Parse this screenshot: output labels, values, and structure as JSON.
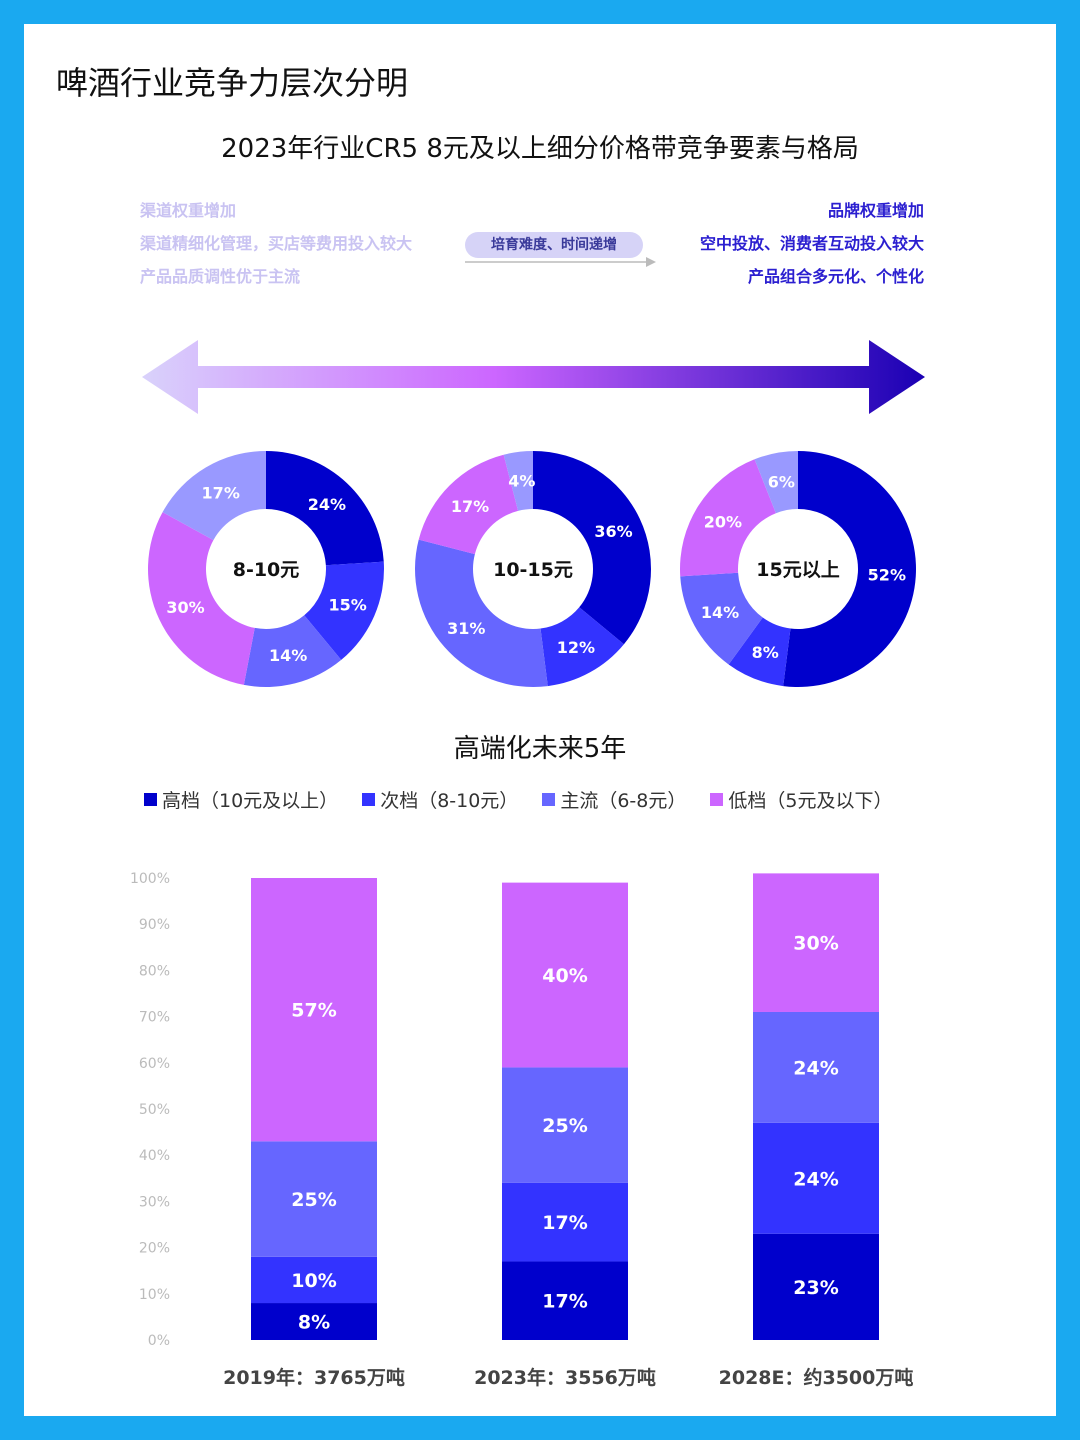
{
  "title": "啤酒行业竞争力层次分明",
  "subtitle": "2023年行业CR5 8元及以上细分价格带竞争要素与格局",
  "left_notes": [
    "渠道权重增加",
    "渠道精细化管理，买店等费用投入较大",
    "产品品质调性优于主流"
  ],
  "right_notes": [
    "品牌权重增加",
    "空中投放、消费者互动投入较大",
    "产品组合多元化、个性化"
  ],
  "middle_label": "培育难度、时间递增",
  "colors": {
    "high": "#0000cc",
    "second": "#3333ff",
    "main": "#6666ff",
    "low": "#cc66ff",
    "light": "#9999ff",
    "arrow_start": "#d9d2fb",
    "arrow_mid": "#cc66ff",
    "arrow_end": "#1a00b3"
  },
  "chart_data": [
    {
      "type": "pie",
      "center_label": "8-10元",
      "slices": [
        {
          "value": 24,
          "label": "24%",
          "color": "#0000cc"
        },
        {
          "value": 15,
          "label": "15%",
          "color": "#3333ff"
        },
        {
          "value": 14,
          "label": "14%",
          "color": "#6666ff"
        },
        {
          "value": 30,
          "label": "30%",
          "color": "#cc66ff"
        },
        {
          "value": 17,
          "label": "17%",
          "color": "#9999ff"
        }
      ]
    },
    {
      "type": "pie",
      "center_label": "10-15元",
      "slices": [
        {
          "value": 36,
          "label": "36%",
          "color": "#0000cc"
        },
        {
          "value": 12,
          "label": "12%",
          "color": "#3333ff"
        },
        {
          "value": 31,
          "label": "31%",
          "color": "#6666ff"
        },
        {
          "value": 17,
          "label": "17%",
          "color": "#cc66ff"
        },
        {
          "value": 4,
          "label": "4%",
          "color": "#9999ff"
        }
      ]
    },
    {
      "type": "pie",
      "center_label": "15元以上",
      "slices": [
        {
          "value": 52,
          "label": "52%",
          "color": "#0000cc"
        },
        {
          "value": 8,
          "label": "8%",
          "color": "#3333ff"
        },
        {
          "value": 14,
          "label": "14%",
          "color": "#6666ff"
        },
        {
          "value": 20,
          "label": "20%",
          "color": "#cc66ff"
        },
        {
          "value": 6,
          "label": "6%",
          "color": "#9999ff"
        }
      ]
    },
    {
      "type": "bar",
      "stacked": true,
      "title": "高端化未来5年",
      "categories": [
        "2019年：3765万吨",
        "2023年：3556万吨",
        "2028E：约3500万吨"
      ],
      "series": [
        {
          "name": "高档（10元及以上）",
          "values": [
            8,
            17,
            23
          ],
          "labels": [
            "8%",
            "17%",
            "23%"
          ],
          "color": "#0000cc"
        },
        {
          "name": "次档（8-10元）",
          "values": [
            10,
            17,
            24
          ],
          "labels": [
            "10%",
            "17%",
            "24%"
          ],
          "color": "#3333ff"
        },
        {
          "name": "主流（6-8元）",
          "values": [
            25,
            25,
            24
          ],
          "labels": [
            "25%",
            "25%",
            "24%"
          ],
          "color": "#6666ff"
        },
        {
          "name": "低档（5元及以下）",
          "values": [
            57,
            40,
            30
          ],
          "labels": [
            "57%",
            "40%",
            "30%"
          ],
          "color": "#cc66ff"
        }
      ],
      "y_ticks": [
        "0%",
        "10%",
        "20%",
        "30%",
        "40%",
        "50%",
        "60%",
        "70%",
        "80%",
        "90%",
        "100%"
      ],
      "ylim": [
        0,
        100
      ],
      "legend_position": "top"
    }
  ]
}
